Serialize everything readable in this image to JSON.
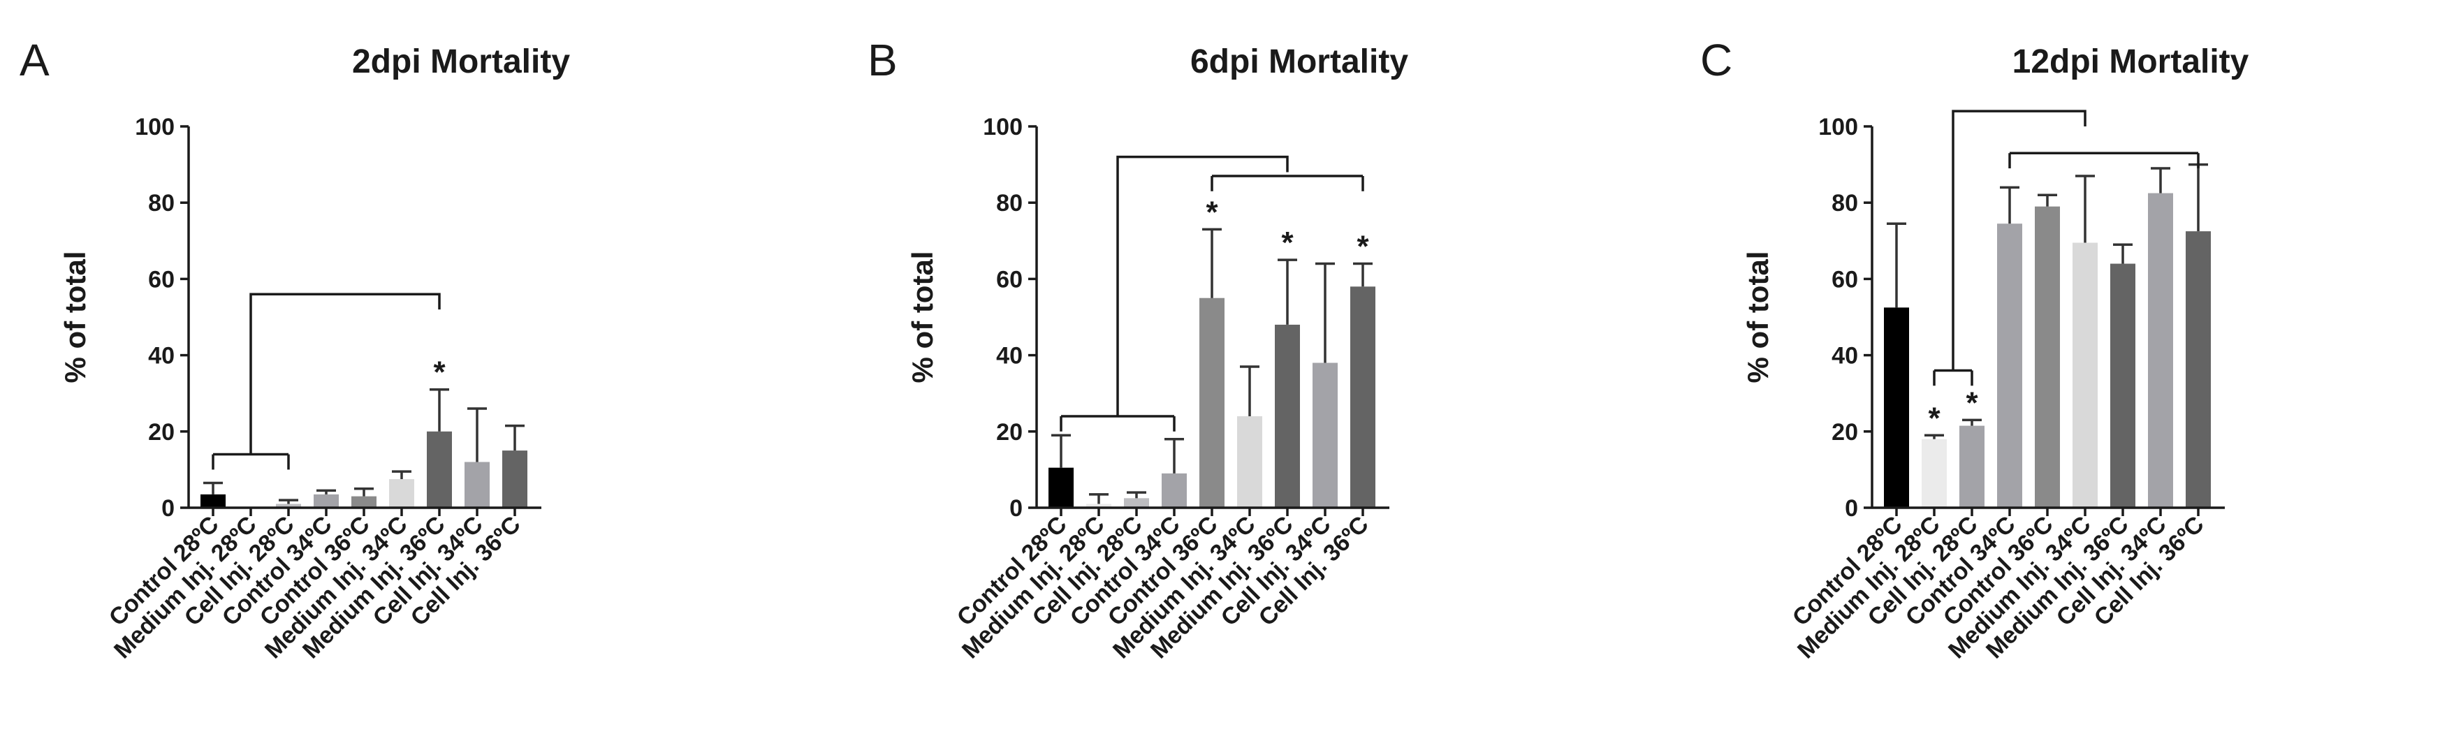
{
  "chart_data": [
    {
      "panel": "A",
      "type": "bar",
      "title": "2dpi Mortality",
      "xlabel": "",
      "ylabel": "% of total",
      "ylim": [
        0,
        100
      ],
      "yticks": [
        0,
        20,
        40,
        60,
        80,
        100
      ],
      "categories": [
        "Control 28ºC",
        "Medium Inj. 28ºC",
        "Cell Inj. 28ºC",
        "Control 34ºC",
        "Control 36ºC",
        "Medium Inj. 34ºC",
        "Medium Inj. 36ºC",
        "Cell Inj. 34ºC",
        "Cell Inj. 36ºC"
      ],
      "values": [
        3.5,
        0,
        1,
        3.5,
        3,
        7.5,
        20,
        12,
        15
      ],
      "errors": [
        3,
        0,
        1,
        1,
        2,
        2,
        11,
        14,
        6.5
      ],
      "colors": [
        "#000000",
        "#ebebeb",
        "#bdbdc0",
        "#a3a3a8",
        "#8a8a8a",
        "#d9d9d9",
        "#646464",
        "#a3a3a8",
        "#646464"
      ],
      "significance": [
        "",
        "",
        "",
        "",
        "",
        "",
        "*",
        "",
        ""
      ],
      "brackets": [
        {
          "left": 0,
          "right": 2,
          "height": 14,
          "stem_to_index": 6,
          "stem_height": 56
        }
      ]
    },
    {
      "panel": "B",
      "type": "bar",
      "title": "6dpi Mortality",
      "xlabel": "",
      "ylabel": "% of total",
      "ylim": [
        0,
        100
      ],
      "yticks": [
        0,
        20,
        40,
        60,
        80,
        100
      ],
      "categories": [
        "Control 28ºC",
        "Medium Inj. 28ºC",
        "Cell Inj. 28ºC",
        "Control 34ºC",
        "Control 36ºC",
        "Medium Inj. 34ºC",
        "Medium Inj. 36ºC",
        "Cell Inj. 34ºC",
        "Cell Inj. 36ºC"
      ],
      "values": [
        10.5,
        1,
        2.5,
        9,
        55,
        24,
        48,
        38,
        58
      ],
      "errors": [
        8.5,
        2.5,
        1.5,
        9,
        18,
        13,
        17,
        26,
        6
      ],
      "colors": [
        "#000000",
        "#ebebeb",
        "#bdbdc0",
        "#a3a3a8",
        "#8a8a8a",
        "#d9d9d9",
        "#646464",
        "#a3a3a8",
        "#646464"
      ],
      "significance": [
        "",
        "",
        "",
        "",
        "*",
        "",
        "*",
        "",
        "*"
      ],
      "brackets": [
        {
          "left": 0,
          "right": 3,
          "height": 24,
          "stem_to_index": 6,
          "stem_height": 92
        },
        {
          "left": 4,
          "right": 8,
          "height": 87
        }
      ]
    },
    {
      "panel": "C",
      "type": "bar",
      "title": "12dpi Mortality",
      "xlabel": "",
      "ylabel": "% of total",
      "ylim": [
        0,
        100
      ],
      "yticks": [
        0,
        20,
        40,
        60,
        80,
        100
      ],
      "categories": [
        "Control 28ºC",
        "Medium Inj. 28ºC",
        "Cell Inj. 28ºC",
        "Control 34ºC",
        "Control 36ºC",
        "Medium Inj. 34ºC",
        "Medium Inj. 36ºC",
        "Cell Inj. 34ºC",
        "Cell Inj. 36ºC"
      ],
      "values": [
        52.5,
        18,
        21.5,
        74.5,
        79,
        69.5,
        64,
        82.5,
        72.5
      ],
      "errors": [
        22,
        1,
        1.5,
        9.5,
        3,
        17.5,
        5,
        6.5,
        17.5
      ],
      "colors": [
        "#000000",
        "#ebebeb",
        "#a3a3a8",
        "#a3a3a8",
        "#8a8a8a",
        "#d9d9d9",
        "#646464",
        "#a3a3a8",
        "#646464"
      ],
      "significance": [
        "",
        "*",
        "*",
        "",
        "",
        "",
        "",
        "",
        ""
      ],
      "brackets": [
        {
          "left": 1,
          "right": 2,
          "height": 36,
          "stem_to_index": 5,
          "stem_height": 104
        },
        {
          "left": 3,
          "right": 8,
          "height": 93
        }
      ]
    }
  ]
}
